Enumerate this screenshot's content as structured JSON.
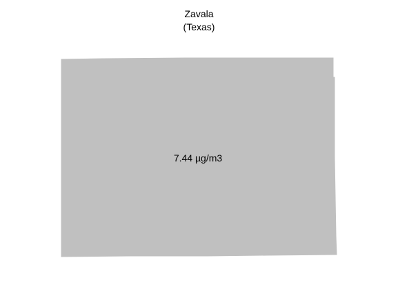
{
  "map": {
    "county_name": "Zavala",
    "state_label": "(Texas)",
    "value_label": "7.44 µg/m3",
    "fill_color": "#c0c0c0"
  }
}
